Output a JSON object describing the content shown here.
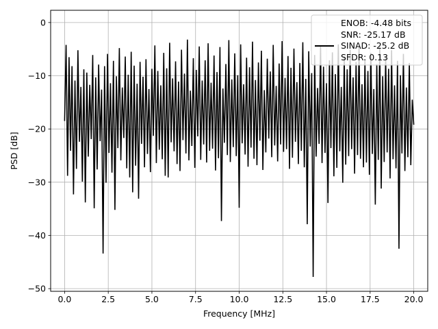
{
  "chart_data": {
    "type": "line",
    "xlabel": "Frequency [MHz]",
    "ylabel": "PSD [dB]",
    "xlim": [
      -0.8,
      20.8
    ],
    "ylim": [
      -50.5,
      2.3
    ],
    "xticks": [
      0.0,
      2.5,
      5.0,
      7.5,
      10.0,
      12.5,
      15.0,
      17.5,
      20.0
    ],
    "xtick_labels": [
      "0.0",
      "2.5",
      "5.0",
      "7.5",
      "10.0",
      "12.5",
      "15.0",
      "17.5",
      "20.0"
    ],
    "yticks": [
      0,
      -10,
      -20,
      -30,
      -40,
      -50
    ],
    "ytick_labels": [
      "0",
      "−10",
      "−20",
      "−30",
      "−40",
      "−50"
    ],
    "grid": true,
    "legend_position": "upper right",
    "line_color": "#000000",
    "legend": [
      {
        "label": "ENOB: -4.48 bits",
        "has_line": false
      },
      {
        "label": "SNR: -25.17 dB",
        "has_line": false
      },
      {
        "label": "SINAD: -25.2 dB",
        "has_line": true
      },
      {
        "label": "SFDR: 0.13",
        "has_line": false
      }
    ],
    "series": [
      {
        "x_start": 0.0,
        "x_end": 20.0,
        "values": [
          -18.5,
          -4.2,
          -28.8,
          -6.5,
          -24.1,
          -8.2,
          -32.3,
          -10.9,
          -27.5,
          -5.2,
          -22.4,
          -12.1,
          -29.9,
          -8.8,
          -33.8,
          -9.4,
          -25.2,
          -11.7,
          -21.9,
          -6.1,
          -34.9,
          -10.3,
          -27.6,
          -7.9,
          -22.3,
          -12.6,
          -43.4,
          -8.2,
          -30.1,
          -5.9,
          -24.5,
          -11.4,
          -28.2,
          -7.2,
          -35.2,
          -10.1,
          -23.6,
          -4.8,
          -25.9,
          -12.2,
          -21.7,
          -6.4,
          -27.4,
          -9.8,
          -29.1,
          -5.5,
          -31.9,
          -8.1,
          -26.9,
          -11.5,
          -33.1,
          -7.4,
          -22.8,
          -10.2,
          -27.2,
          -6.9,
          -24.7,
          -12.5,
          -28.1,
          -8.7,
          -21.3,
          -4.3,
          -26.4,
          -9.1,
          -23.9,
          -11.8,
          -25.7,
          -5.7,
          -28.8,
          -8.6,
          -29.1,
          -3.8,
          -22.5,
          -10.5,
          -24.2,
          -7.3,
          -26.6,
          -11.1,
          -27.9,
          -5.1,
          -22.1,
          -9.6,
          -24.6,
          -3.2,
          -25.9,
          -12.8,
          -23.2,
          -6.7,
          -27.3,
          -8.9,
          -21.4,
          -4.5,
          -25.8,
          -10.9,
          -22.9,
          -7.1,
          -26.3,
          -3.9,
          -24.1,
          -11.3,
          -23.7,
          -6.2,
          -27.8,
          -9.3,
          -25.5,
          -4.6,
          -37.3,
          -12.4,
          -22.6,
          -7.8,
          -24.9,
          -3.3,
          -26.2,
          -10.7,
          -23.4,
          -5.8,
          -25.1,
          -9.9,
          -34.8,
          -4.1,
          -22.7,
          -11.6,
          -24.8,
          -6.6,
          -27.1,
          -8.4,
          -23.5,
          -3.6,
          -25.6,
          -10.8,
          -26.8,
          -7.5,
          -22.2,
          -5.3,
          -27.7,
          -12.7,
          -24.4,
          -6.8,
          -21.8,
          -9.2,
          -25.3,
          -4.2,
          -23.1,
          -11.9,
          -26.1,
          -7.7,
          -22.9,
          -3.5,
          -24.3,
          -10.4,
          -23.8,
          -6.3,
          -27.5,
          -8.5,
          -25.4,
          -4.9,
          -22.4,
          -11.2,
          -26.6,
          -7.6,
          -24.1,
          -3.7,
          -27.2,
          -10.6,
          -37.9,
          -5.4,
          -23.3,
          -9.5,
          -47.8,
          -6.1,
          -25.2,
          -12.3,
          -22.8,
          -4.4,
          -26.4,
          -8.3,
          -24.5,
          -11.4,
          -33.9,
          -7.1,
          -23.6,
          -5.6,
          -28.9,
          -9.7,
          -27.3,
          -4.1,
          -24.2,
          -12.1,
          -30.1,
          -6.4,
          -26.7,
          -8.8,
          -25.1,
          -5.1,
          -23.8,
          -10.3,
          -28.4,
          -7.4,
          -24.9,
          -4.6,
          -25.6,
          -11.6,
          -27.2,
          -6.9,
          -26.3,
          -9.1,
          -28.6,
          -5.7,
          -24.7,
          -12.5,
          -34.2,
          -7.8,
          -25.8,
          -4.3,
          -31.2,
          -10.1,
          -26.2,
          -6.5,
          -24.4,
          -8.7,
          -29.3,
          -5.2,
          -25.7,
          -11.8,
          -27.4,
          -7.2,
          -42.5,
          -9.9,
          -24.6,
          -5.9,
          -27.9,
          -12.2,
          -25.3,
          -7.6,
          -26.8,
          -14.5,
          -19.2
        ]
      }
    ]
  }
}
